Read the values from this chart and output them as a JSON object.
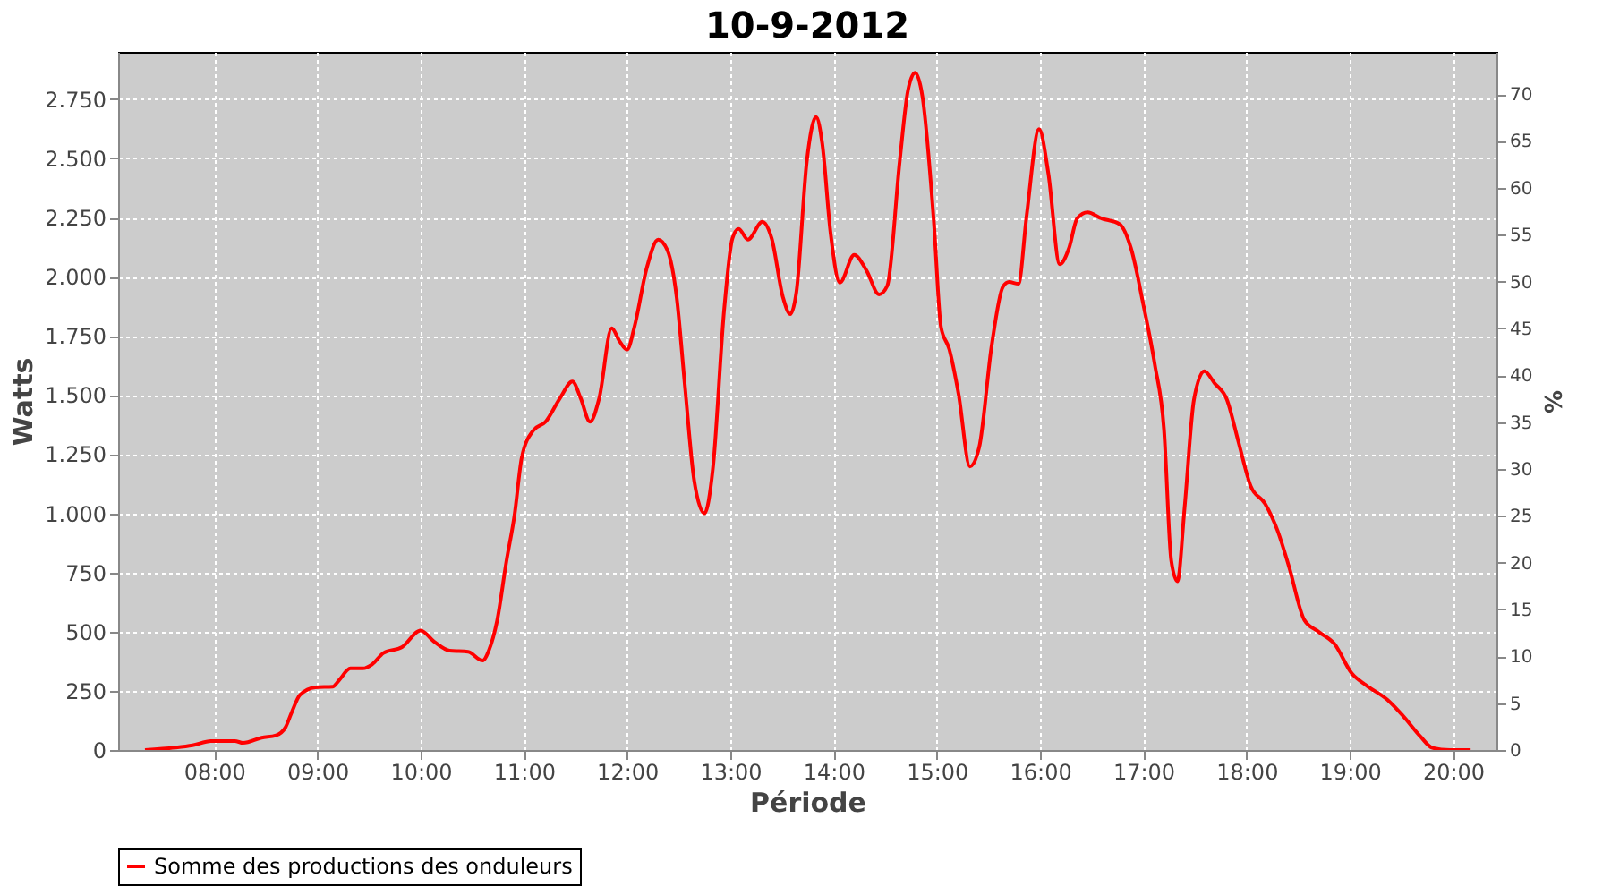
{
  "chart_data": {
    "type": "line",
    "title": "10-9-2012",
    "xlabel": "Période",
    "ylabel": "Watts",
    "y2label": "%",
    "xlim": [
      7.07,
      20.42
    ],
    "xticks": [
      {
        "value": 8,
        "label": "08:00"
      },
      {
        "value": 9,
        "label": "09:00"
      },
      {
        "value": 10,
        "label": "10:00"
      },
      {
        "value": 11,
        "label": "11:00"
      },
      {
        "value": 12,
        "label": "12:00"
      },
      {
        "value": 13,
        "label": "13:00"
      },
      {
        "value": 14,
        "label": "14:00"
      },
      {
        "value": 15,
        "label": "15:00"
      },
      {
        "value": 16,
        "label": "16:00"
      },
      {
        "value": 17,
        "label": "17:00"
      },
      {
        "value": 18,
        "label": "18:00"
      },
      {
        "value": 19,
        "label": "19:00"
      },
      {
        "value": 20,
        "label": "20:00"
      }
    ],
    "ylim": [
      0,
      2950
    ],
    "yticks": [
      0,
      250,
      500,
      750,
      {
        "value": 1000,
        "label": "1.000"
      },
      {
        "value": 1250,
        "label": "1.250"
      },
      {
        "value": 1500,
        "label": "1.500"
      },
      {
        "value": 1750,
        "label": "1.750"
      },
      {
        "value": 2000,
        "label": "2.000"
      },
      {
        "value": 2250,
        "label": "2.250"
      },
      {
        "value": 2500,
        "label": "2.500"
      },
      {
        "value": 2750,
        "label": "2.750"
      }
    ],
    "y2lim": [
      0,
      74.5
    ],
    "y2ticks": [
      0,
      5,
      10,
      15,
      20,
      25,
      30,
      35,
      40,
      45,
      50,
      55,
      60,
      65,
      70
    ],
    "grid": true,
    "legend": "bottom",
    "marker": "none",
    "line_style": "solid",
    "series": [
      {
        "name": "Somme des productions des onduleurs",
        "color": "#ff0000",
        "x": [
          7.33,
          7.62,
          7.79,
          7.97,
          8.2,
          8.28,
          8.46,
          8.6,
          8.69,
          8.75,
          8.83,
          8.98,
          9.15,
          9.21,
          9.32,
          9.44,
          9.53,
          9.64,
          9.82,
          10.0,
          10.13,
          10.28,
          10.46,
          10.6,
          10.66,
          10.74,
          10.83,
          10.91,
          10.98,
          11.09,
          11.21,
          11.35,
          11.47,
          11.55,
          11.64,
          11.73,
          11.85,
          11.93,
          12.0,
          12.07,
          12.19,
          12.3,
          12.39,
          12.48,
          12.56,
          12.65,
          12.75,
          12.83,
          12.94,
          13.02,
          13.08,
          13.17,
          13.31,
          13.4,
          13.51,
          13.58,
          13.64,
          13.74,
          13.83,
          13.89,
          13.97,
          14.06,
          14.2,
          14.32,
          14.44,
          14.52,
          14.64,
          14.72,
          14.79,
          14.86,
          14.97,
          15.04,
          15.12,
          15.21,
          15.32,
          15.41,
          15.53,
          15.64,
          15.7,
          15.79,
          15.87,
          15.99,
          16.08,
          16.19,
          16.28,
          16.36,
          16.46,
          16.59,
          16.77,
          16.88,
          17.0,
          17.11,
          17.2,
          17.27,
          17.33,
          17.4,
          17.49,
          17.59,
          17.69,
          17.81,
          17.92,
          18.04,
          18.18,
          18.3,
          18.41,
          18.56,
          18.7,
          18.85,
          19.02,
          19.16,
          19.37,
          19.51,
          19.68,
          19.8,
          19.97,
          20.17
        ],
        "values": [
          0,
          10,
          20,
          38,
          38,
          30,
          52,
          62,
          95,
          158,
          232,
          265,
          268,
          295,
          345,
          345,
          362,
          410,
          435,
          505,
          458,
          420,
          415,
          378,
          420,
          545,
          795,
          995,
          1237,
          1350,
          1387,
          1487,
          1557,
          1487,
          1387,
          1487,
          1782,
          1725,
          1692,
          1787,
          2037,
          2157,
          2112,
          1912,
          1537,
          1137,
          1000,
          1187,
          1862,
          2162,
          2202,
          2157,
          2232,
          2162,
          1912,
          1842,
          1937,
          2487,
          2675,
          2562,
          2187,
          1975,
          2092,
          2025,
          1925,
          1962,
          2487,
          2787,
          2862,
          2762,
          2237,
          1787,
          1694,
          1505,
          1198,
          1279,
          1706,
          1958,
          1978,
          1970,
          2260,
          2624,
          2436,
          2053,
          2121,
          2247,
          2272,
          2247,
          2222,
          2121,
          1882,
          1631,
          1354,
          801,
          713,
          1027,
          1480,
          1601,
          1550,
          1480,
          1304,
          1115,
          1040,
          927,
          776,
          549,
          499,
          449,
          323,
          273,
          210,
          147,
          59,
          9,
          0,
          0
        ]
      }
    ]
  }
}
